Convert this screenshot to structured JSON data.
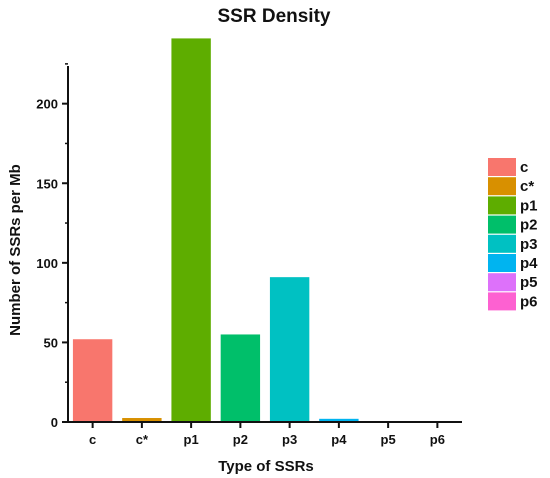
{
  "chart_data": {
    "type": "bar",
    "title": "SSR Density",
    "xlabel": "Type of SSRs",
    "ylabel": "Number of SSRs per Mb",
    "categories": [
      "c",
      "c*",
      "p1",
      "p2",
      "p3",
      "p4",
      "p5",
      "p6"
    ],
    "values": [
      52,
      2.5,
      241,
      55,
      91,
      2,
      0.4,
      0.2
    ],
    "colors": [
      "#f8766d",
      "#d89000",
      "#5ead00",
      "#00bf6a",
      "#00c1c2",
      "#00b4f0",
      "#dd71fa",
      "#fd61d1"
    ],
    "ylim": [
      0,
      240
    ],
    "yticks": [
      0,
      50,
      100,
      150,
      200
    ],
    "grid": false,
    "legend": "right",
    "legend_entries": [
      "c",
      "c*",
      "p1",
      "p2",
      "p3",
      "p4",
      "p5",
      "p6"
    ]
  }
}
